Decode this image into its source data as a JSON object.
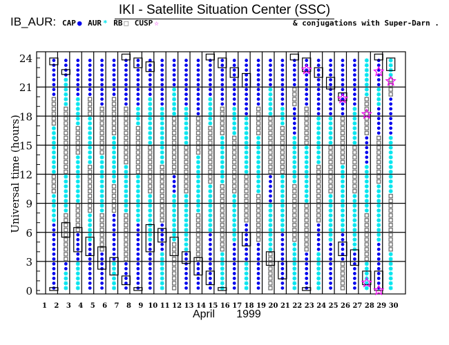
{
  "header": {
    "title": "IKI - Satellite Situation Center (SSC)",
    "dataset": "IB_AUR:",
    "legend": [
      "CAP",
      "AUR",
      "RB",
      "CUSP"
    ],
    "conjugations": "& conjugations with Super-Darn ."
  },
  "chart_data": {
    "type": "scatter",
    "title": "IKI - Satellite Situation Center (SSC)",
    "xlabel": "April      1999",
    "xlabel_month": "April",
    "xlabel_year": "1999",
    "ylabel": "Universal time (hours)",
    "xlim": [
      1,
      31
    ],
    "ylim": [
      0,
      24
    ],
    "x_ticks": [
      1,
      2,
      3,
      4,
      5,
      6,
      7,
      8,
      9,
      10,
      11,
      12,
      13,
      14,
      15,
      16,
      17,
      18,
      19,
      20,
      21,
      22,
      23,
      24,
      25,
      26,
      27,
      28,
      29,
      30
    ],
    "y_ticks": [
      0,
      3,
      6,
      9,
      12,
      15,
      18,
      21,
      24
    ],
    "grid": true,
    "colors": {
      "CAP": "#0000ee",
      "AUR": "#00e5ee",
      "RB": "#707070",
      "CUSP": "#ee00ee",
      "box": "#000000"
    },
    "step_hours": 0.5,
    "region_runs_by_day": {
      "2": "C14 A6 R4 A10 R6 C8",
      "3": "A4 C2 R10 A8 R14 A6 C4",
      "4": "A6 C6 R6 A10 R6 A6 C8",
      "5": "C10 A6 R10 A10 R4 C8",
      "6": "C8 R8 A12 R10 C10",
      "7": "A6 C10 R6 A10 R8 C8",
      "8": "C6 R10 A10 R12 C10",
      "9": "C14 A10 R10 A4 C10",
      "10": "C10 A10 R10 A10 C8",
      "11": "A8 C6 R12 A12 C10",
      "12": "R10 A10 C4 R12 A6 C6",
      "13": "C8 A12 R10 A8 C10",
      "14": "C6 R10 A12 R8 C12",
      "15": "C12 A10 R12 A6 C8",
      "16": "A8 R14 A10 R6 C10",
      "17": "C10 A10 R12 A6 C10",
      "18": "A6 C8 R10 A12 C12",
      "19": "C10 R10 A12 R6 C10",
      "20": "R8 A10 C6 R12 A6 C6",
      "21": "C12 A12 R10 A4 C10",
      "22": "A10 R12 A10 C6 R4 C6",
      "23": "C8 R10 A12 R8 C10",
      "24": "A8 C6 R12 A10 C12",
      "25": "C10 A10 R10 A6 C12",
      "26": "R6 C6 A14 R10 C12",
      "27": "C8 A12 R10 A8 C10",
      "28": "A6 R10 A10 C6 R8 A8",
      "29": "C10 A12 R10 C6 A4 C6",
      "30": "A8 R12 A12 C8 R4 A4"
    },
    "conjugation_boxes": [
      [
        2,
        23.3,
        24
      ],
      [
        3,
        22.3,
        22.8
      ],
      [
        8,
        23.8,
        24.4
      ],
      [
        9,
        23,
        24
      ],
      [
        10,
        22.6,
        23.6
      ],
      [
        15,
        23.8,
        24.4
      ],
      [
        16,
        23,
        24
      ],
      [
        17,
        22,
        23
      ],
      [
        18,
        21,
        22.4
      ],
      [
        22,
        23.8,
        24.4
      ],
      [
        23,
        22.6,
        24
      ],
      [
        24,
        22,
        23
      ],
      [
        25,
        20.8,
        22
      ],
      [
        26,
        19.6,
        20.4
      ],
      [
        29,
        23.8,
        24.4
      ],
      [
        30,
        22.7,
        24
      ],
      [
        2,
        0,
        0.3
      ],
      [
        3,
        5.5,
        7
      ],
      [
        4,
        4,
        6.5
      ],
      [
        5,
        3.6,
        5.5
      ],
      [
        6,
        2.2,
        4.5
      ],
      [
        7,
        1.6,
        3.4
      ],
      [
        8,
        0.6,
        1.5
      ],
      [
        9,
        0,
        0.3
      ],
      [
        10,
        4,
        6.8
      ],
      [
        11,
        5,
        6.4
      ],
      [
        12,
        3.6,
        5.5
      ],
      [
        13,
        2.8,
        4
      ],
      [
        14,
        1.6,
        3.4
      ],
      [
        15,
        0.6,
        2
      ],
      [
        16,
        0,
        0.3
      ],
      [
        18,
        4.6,
        6
      ],
      [
        20,
        2.6,
        4
      ],
      [
        21,
        1.2,
        3
      ],
      [
        23,
        0,
        0.3
      ],
      [
        26,
        3.6,
        5
      ],
      [
        27,
        2.6,
        4.2
      ],
      [
        28,
        0.6,
        2
      ],
      [
        29,
        0,
        2
      ]
    ],
    "cusp_stars": [
      [
        23,
        22.8
      ],
      [
        26,
        19.8
      ],
      [
        28,
        18.2
      ],
      [
        29,
        22.6
      ],
      [
        30,
        21.6
      ],
      [
        28,
        0.8
      ],
      [
        29,
        0
      ]
    ]
  }
}
